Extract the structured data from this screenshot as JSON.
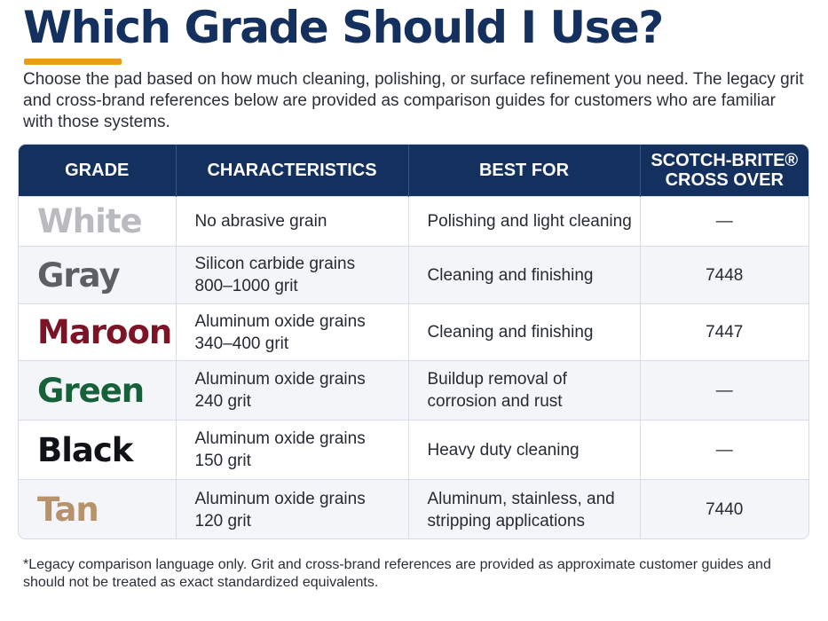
{
  "title": "Which Grade Should I Use?",
  "intro": "Choose the pad based on how much cleaning, polishing, or surface refinement you need. The legacy grit and cross-brand references below are provided as comparison guides for customers who are familiar with those systems.",
  "table": {
    "headers": {
      "grade": "GRADE",
      "characteristics": "CHARACTERISTICS",
      "best_for": "BEST FOR",
      "crossover_line1": "SCOTCH-BRITE®",
      "crossover_line2": "CROSS OVER"
    },
    "rows": [
      {
        "grade": "White",
        "color": "#b9bbbf",
        "char1": "No abrasive grain",
        "char2": "",
        "best1": "Polishing and light cleaning",
        "best2": "",
        "crossover": "—"
      },
      {
        "grade": "Gray",
        "color": "#5c5f64",
        "char1": "Silicon carbide grains",
        "char2": "800–1000 grit",
        "best1": "Cleaning and finishing",
        "best2": "",
        "crossover": "7448"
      },
      {
        "grade": "Maroon",
        "color": "#7d1426",
        "char1": "Aluminum oxide grains",
        "char2": "340–400 grit",
        "best1": "Cleaning and finishing",
        "best2": "",
        "crossover": "7447"
      },
      {
        "grade": "Green",
        "color": "#16613a",
        "char1": "Aluminum oxide grains",
        "char2": "240 grit",
        "best1": "Buildup removal of",
        "best2": "corrosion and rust",
        "crossover": "—"
      },
      {
        "grade": "Black",
        "color": "#111317",
        "char1": "Aluminum oxide grains",
        "char2": "150 grit",
        "best1": "Heavy duty cleaning",
        "best2": "",
        "crossover": "—"
      },
      {
        "grade": "Tan",
        "color": "#b8926b",
        "char1": "Aluminum oxide grains",
        "char2": "120 grit",
        "best1": "Aluminum, stainless, and",
        "best2": "stripping applications",
        "crossover": "7440"
      }
    ]
  },
  "footnote": "*Legacy comparison language only. Grit and cross-brand references are provided as approximate customer guides and should not be treated as exact standardized equivalents.",
  "colors": {
    "header_bg": "#13305f",
    "accent": "#f09a1c"
  }
}
